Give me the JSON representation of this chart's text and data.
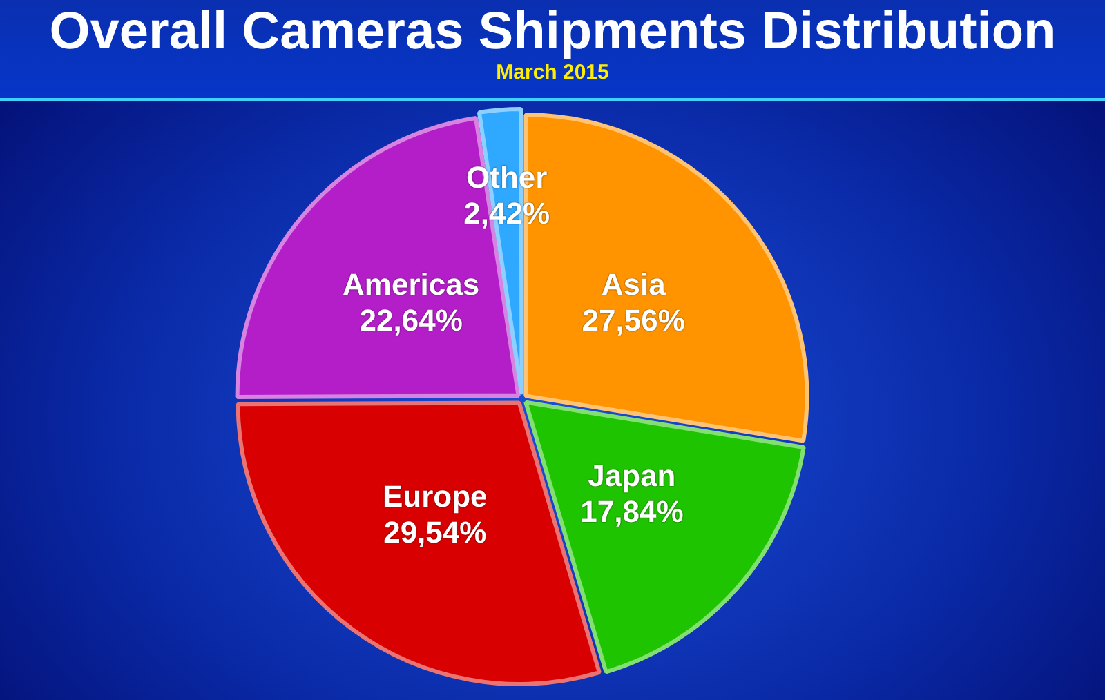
{
  "chart_data": {
    "type": "pie",
    "title": "Overall Cameras Shipments Distribution",
    "subtitle": "March 2015",
    "categories": [
      "Asia",
      "Japan",
      "Europe",
      "Americas",
      "Other"
    ],
    "values": [
      27.56,
      17.84,
      29.54,
      22.64,
      2.42
    ],
    "colors": [
      "#ff9400",
      "#1fc400",
      "#d80000",
      "#b41ec8",
      "#2fa8ff"
    ],
    "value_labels": [
      "27,56%",
      "17,84%",
      "29,54%",
      "22,64%",
      "2,42%"
    ]
  }
}
